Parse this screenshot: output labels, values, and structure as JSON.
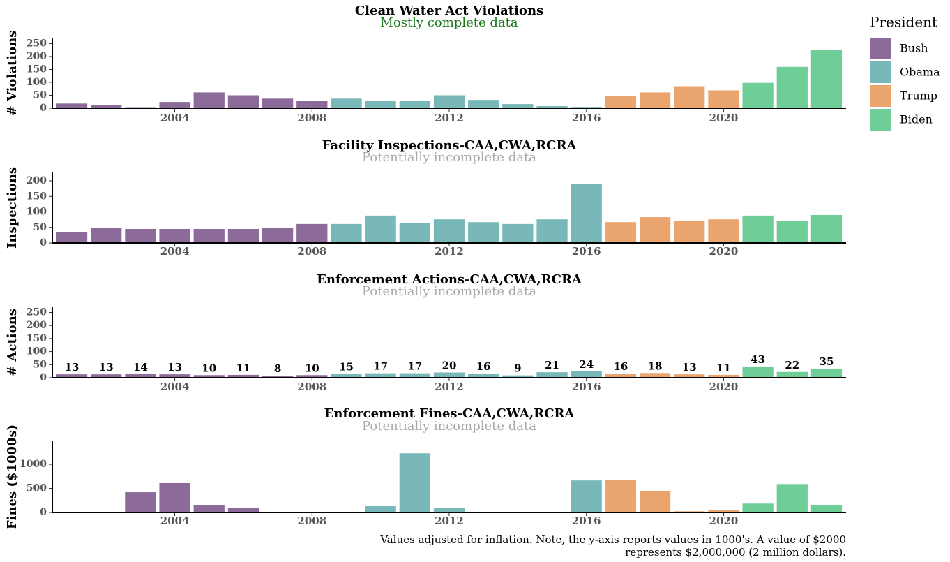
{
  "legend": {
    "title": "President"
  },
  "note": [
    "Values adjusted for inflation. Note, the y-axis reports values in 1000's. A value of $2000",
    "represents $2,000,000 (2 million dollars)."
  ],
  "chart_data": [
    {
      "type": "bar",
      "title": "Clean Water Act Violations",
      "subtitle": "Mostly complete data",
      "subtitle_color": "#1a7a1a",
      "ylabel": "# Violations",
      "xlim": [
        2000.43,
        2023.57
      ],
      "xticks": [
        2004,
        2008,
        2012,
        2016,
        2020
      ],
      "ylim": [
        0,
        270
      ],
      "yticks": [
        0,
        50,
        100,
        150,
        200,
        250
      ],
      "show_values": false,
      "series": [
        {
          "name": "Bush",
          "color": "#8c6a9a",
          "x": [
            2001,
            2002,
            2003,
            2004,
            2005,
            2006,
            2007,
            2008
          ],
          "values": [
            18,
            11,
            4,
            24,
            61,
            50,
            37,
            27
          ]
        },
        {
          "name": "Obama",
          "color": "#78b8b8",
          "x": [
            2009,
            2010,
            2011,
            2012,
            2013,
            2014,
            2015,
            2016
          ],
          "values": [
            37,
            27,
            29,
            50,
            32,
            16,
            8,
            5
          ]
        },
        {
          "name": "Trump",
          "color": "#eaa56f",
          "x": [
            2017,
            2018,
            2019,
            2020
          ],
          "values": [
            48,
            61,
            85,
            69
          ]
        },
        {
          "name": "Biden",
          "color": "#6fcd98",
          "x": [
            2021,
            2022,
            2023
          ],
          "values": [
            98,
            160,
            226
          ]
        }
      ]
    },
    {
      "type": "bar",
      "title": "Facility Inspections-CAA,CWA,RCRA",
      "subtitle": "Potentially incomplete data",
      "subtitle_color": "#aaaaaa",
      "ylabel": "Inspections",
      "xlim": [
        2000.43,
        2023.57
      ],
      "xticks": [
        2004,
        2008,
        2012,
        2016,
        2020
      ],
      "ylim": [
        0,
        227
      ],
      "yticks": [
        0,
        50,
        100,
        150,
        200
      ],
      "show_values": false,
      "series": [
        {
          "name": "Bush",
          "color": "#8c6a9a",
          "x": [
            2001,
            2002,
            2003,
            2004,
            2005,
            2006,
            2007,
            2008
          ],
          "values": [
            34,
            49,
            45,
            45,
            45,
            45,
            49,
            61
          ]
        },
        {
          "name": "Obama",
          "color": "#78b8b8",
          "x": [
            2009,
            2010,
            2011,
            2012,
            2013,
            2014,
            2015,
            2016
          ],
          "values": [
            61,
            88,
            65,
            76,
            67,
            61,
            76,
            191
          ]
        },
        {
          "name": "Trump",
          "color": "#eaa56f",
          "x": [
            2017,
            2018,
            2019,
            2020
          ],
          "values": [
            67,
            83,
            72,
            76
          ]
        },
        {
          "name": "Biden",
          "color": "#6fcd98",
          "x": [
            2021,
            2022,
            2023
          ],
          "values": [
            88,
            72,
            90
          ]
        }
      ]
    },
    {
      "type": "bar",
      "title": "Enforcement Actions-CAA,CWA,RCRA",
      "subtitle": "Potentially incomplete data",
      "subtitle_color": "#aaaaaa",
      "ylabel": "# Actions",
      "xlim": [
        2000.43,
        2023.57
      ],
      "xticks": [
        2004,
        2008,
        2012,
        2016,
        2020
      ],
      "ylim": [
        0,
        270
      ],
      "yticks": [
        0,
        50,
        100,
        150,
        200,
        250
      ],
      "show_values": true,
      "series": [
        {
          "name": "Bush",
          "color": "#8c6a9a",
          "x": [
            2001,
            2002,
            2003,
            2004,
            2005,
            2006,
            2007,
            2008
          ],
          "values": [
            13,
            13,
            14,
            13,
            10,
            11,
            8,
            10
          ]
        },
        {
          "name": "Obama",
          "color": "#78b8b8",
          "x": [
            2009,
            2010,
            2011,
            2012,
            2013,
            2014,
            2015,
            2016
          ],
          "values": [
            15,
            17,
            17,
            20,
            16,
            9,
            21,
            24
          ]
        },
        {
          "name": "Trump",
          "color": "#eaa56f",
          "x": [
            2017,
            2018,
            2019,
            2020
          ],
          "values": [
            16,
            18,
            13,
            11
          ]
        },
        {
          "name": "Biden",
          "color": "#6fcd98",
          "x": [
            2021,
            2022,
            2023
          ],
          "values": [
            43,
            22,
            35
          ]
        }
      ]
    },
    {
      "type": "bar",
      "title": "Enforcement Fines-CAA,CWA,RCRA",
      "subtitle": "Potentially incomplete data",
      "subtitle_color": "#aaaaaa",
      "ylabel": "Fines ($1000s)",
      "xlim": [
        2000.43,
        2023.57
      ],
      "xticks": [
        2004,
        2008,
        2012,
        2016,
        2020
      ],
      "ylim": [
        0,
        1480
      ],
      "yticks": [
        0,
        500,
        1000
      ],
      "show_values": false,
      "series": [
        {
          "name": "Bush",
          "color": "#8c6a9a",
          "x": [
            2001,
            2002,
            2003,
            2004,
            2005,
            2006,
            2007,
            2008
          ],
          "values": [
            0,
            0,
            420,
            610,
            145,
            87,
            0,
            0
          ]
        },
        {
          "name": "Obama",
          "color": "#78b8b8",
          "x": [
            2009,
            2010,
            2011,
            2012,
            2013,
            2014,
            2015,
            2016
          ],
          "values": [
            0,
            130,
            1230,
            100,
            0,
            0,
            0,
            665
          ]
        },
        {
          "name": "Trump",
          "color": "#eaa56f",
          "x": [
            2017,
            2018,
            2019,
            2020
          ],
          "values": [
            680,
            450,
            25,
            55
          ]
        },
        {
          "name": "Biden",
          "color": "#6fcd98",
          "x": [
            2021,
            2022,
            2023
          ],
          "values": [
            185,
            590,
            160
          ]
        }
      ]
    }
  ]
}
